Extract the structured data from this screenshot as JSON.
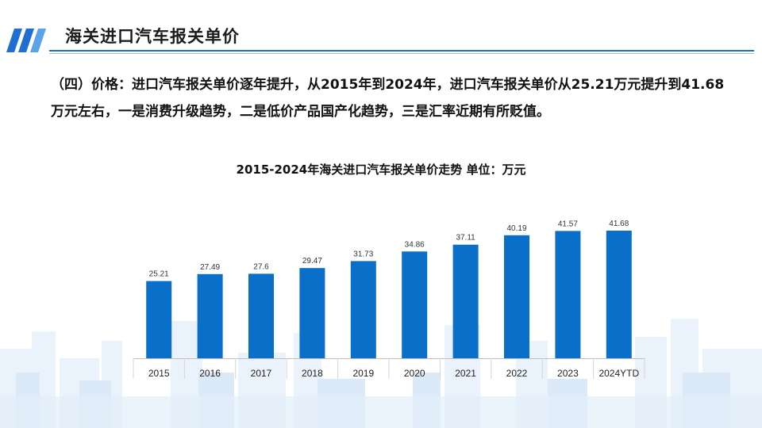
{
  "header": {
    "title": "海关进口汽车报关单价",
    "accent_color": "#1f6fd1"
  },
  "intro": {
    "text": "（四）价格：进口汽车报关单价逐年提升，从2015年到2024年，进口汽车报关单价从25.21万元提升到41.68万元左右，一是消费升级趋势，二是低价产品国产化趋势，三是汇率近期有所贬值。"
  },
  "chart_data": {
    "type": "bar",
    "title": "2015-2024年海关进口汽车报关单价走势   单位：万元",
    "xlabel": "",
    "ylabel": "",
    "categories": [
      "2015",
      "2016",
      "2017",
      "2018",
      "2019",
      "2020",
      "2021",
      "2022",
      "2023",
      "2024YTD"
    ],
    "values": [
      25.21,
      27.49,
      27.6,
      29.47,
      31.73,
      34.86,
      37.11,
      40.19,
      41.57,
      41.68
    ],
    "value_labels": [
      "25.21",
      "27.49",
      "27.6",
      "29.47",
      "31.73",
      "34.86",
      "37.11",
      "40.19",
      "41.57",
      "41.68"
    ],
    "ylim": [
      0,
      41.68
    ],
    "grid": false,
    "bar_color": "#0a6fc8"
  }
}
